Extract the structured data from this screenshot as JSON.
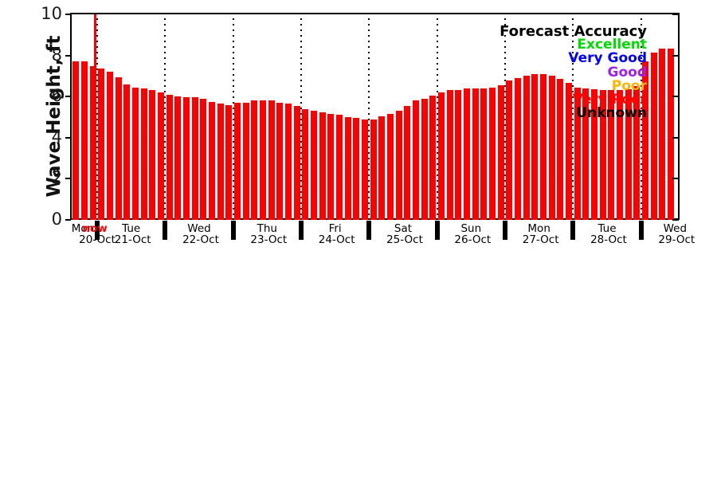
{
  "chart_data": {
    "type": "bar",
    "title": "",
    "ylabel": "Wave Height, ft",
    "xlabel": "",
    "ylim": [
      0,
      10
    ],
    "yticks": [
      0,
      2,
      4,
      6,
      8,
      10
    ],
    "grid": "vertical dotted lines at day boundaries",
    "legend_position": "top-right inside plot, right-aligned",
    "bar_color": "#ff0000",
    "interval_hours": 3,
    "units": "ft",
    "days": [
      {
        "name": "Mon",
        "date": "20-Oct",
        "values": [
          7.7,
          7.7,
          7.5
        ]
      },
      {
        "name": "Tue",
        "date": "21-Oct",
        "values": [
          7.35,
          7.2,
          6.95,
          6.6,
          6.45,
          6.4,
          6.3,
          6.2
        ]
      },
      {
        "name": "Wed",
        "date": "22-Oct",
        "values": [
          6.1,
          6.0,
          5.95,
          5.95,
          5.9,
          5.75,
          5.65,
          5.6
        ]
      },
      {
        "name": "Thu",
        "date": "23-Oct",
        "values": [
          5.7,
          5.7,
          5.8,
          5.8,
          5.8,
          5.7,
          5.65,
          5.55
        ]
      },
      {
        "name": "Fri",
        "date": "24-Oct",
        "values": [
          5.4,
          5.3,
          5.25,
          5.15,
          5.1,
          5.0,
          4.95,
          4.9
        ]
      },
      {
        "name": "Sat",
        "date": "25-Oct",
        "values": [
          4.9,
          5.05,
          5.15,
          5.3,
          5.55,
          5.8,
          5.9,
          6.05
        ]
      },
      {
        "name": "Sun",
        "date": "26-Oct",
        "values": [
          6.2,
          6.3,
          6.3,
          6.4,
          6.4,
          6.4,
          6.45,
          6.55
        ]
      },
      {
        "name": "Mon",
        "date": "27-Oct",
        "values": [
          6.8,
          6.9,
          7.0,
          7.1,
          7.1,
          7.0,
          6.85,
          6.65
        ]
      },
      {
        "name": "Tue",
        "date": "28-Oct",
        "values": [
          6.45,
          6.4,
          6.35,
          6.3,
          6.3,
          6.3,
          6.35,
          6.5
        ]
      },
      {
        "name": "Wed",
        "date": "29-Oct",
        "values": [
          7.7,
          8.15,
          8.35,
          8.35
        ]
      }
    ],
    "now_marker": {
      "label": "now",
      "color": "#ff0000"
    },
    "legend": {
      "title": "Forecast Accuracy",
      "title_color": "#000000",
      "entries": [
        {
          "label": "Excellent",
          "color": "#00dc00"
        },
        {
          "label": "Very Good",
          "color": "#0000ff"
        },
        {
          "label": "Good",
          "color": "#a020f0"
        },
        {
          "label": "Poor",
          "color": "#ffb300"
        },
        {
          "label": "Very Poor",
          "color": "#ff0000"
        },
        {
          "label": "Unknown",
          "color": "#000000"
        }
      ]
    }
  }
}
